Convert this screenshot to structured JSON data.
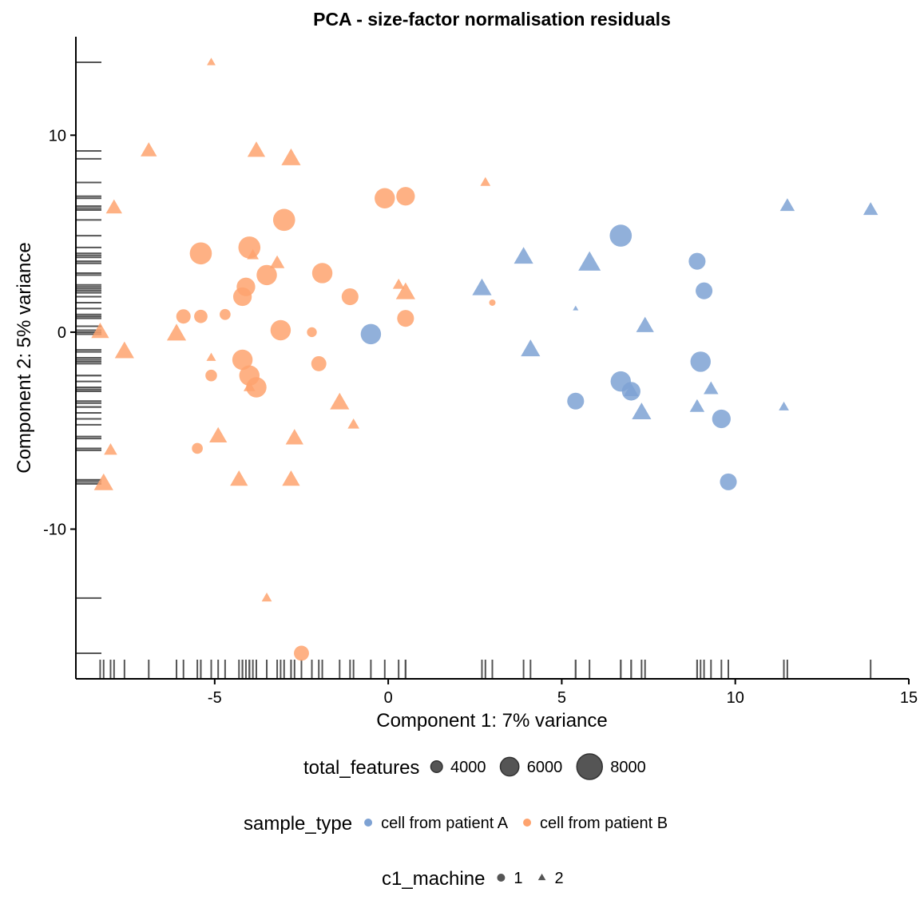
{
  "chart_data": {
    "type": "scatter",
    "title": "PCA - size-factor normalisation residuals",
    "xlabel": "Component 1: 7% variance",
    "ylabel": "Component 2: 5% variance",
    "xlim": [
      -9.0,
      15.0
    ],
    "ylim": [
      -17.6,
      15.0
    ],
    "xticks": [
      -5,
      0,
      5,
      10,
      15
    ],
    "xtick_labels": [
      "-5",
      "0",
      "5",
      "10",
      "15"
    ],
    "yticks": [
      -10,
      0,
      10
    ],
    "ytick_labels": [
      "-10",
      "0",
      "10"
    ],
    "rug": true,
    "grid": false,
    "colors": {
      "A": "#7ea2d3",
      "B": "#fea36e",
      "legend_dark": "#555555"
    },
    "legends": [
      {
        "title": "total_features",
        "type": "size",
        "items": [
          {
            "label": "4000",
            "size": 4000
          },
          {
            "label": "6000",
            "size": 6000
          },
          {
            "label": "8000",
            "size": 8000
          }
        ]
      },
      {
        "title": "sample_type",
        "type": "color",
        "items": [
          {
            "label": "cell from patient A",
            "group": "A"
          },
          {
            "label": "cell from patient B",
            "group": "B"
          }
        ]
      },
      {
        "title": "c1_machine",
        "type": "shape",
        "items": [
          {
            "label": "1",
            "shape": "circle"
          },
          {
            "label": "2",
            "shape": "triangle"
          }
        ]
      }
    ],
    "points": [
      {
        "x": -4.1,
        "y": 2.3,
        "g": "B",
        "m": 1,
        "s": 6000
      },
      {
        "x": -4.2,
        "y": 1.8,
        "g": "B",
        "m": 1,
        "s": 6000
      },
      {
        "x": -4.0,
        "y": 4.3,
        "g": "B",
        "m": 1,
        "s": 7000
      },
      {
        "x": -3.0,
        "y": 5.7,
        "g": "B",
        "m": 1,
        "s": 7000
      },
      {
        "x": -5.4,
        "y": 4.0,
        "g": "B",
        "m": 1,
        "s": 7000
      },
      {
        "x": -3.5,
        "y": 2.9,
        "g": "B",
        "m": 1,
        "s": 6500
      },
      {
        "x": -1.9,
        "y": 3.0,
        "g": "B",
        "m": 1,
        "s": 6500
      },
      {
        "x": -1.1,
        "y": 1.8,
        "g": "B",
        "m": 1,
        "s": 5500
      },
      {
        "x": -0.1,
        "y": 6.8,
        "g": "B",
        "m": 1,
        "s": 6500
      },
      {
        "x": 0.5,
        "y": 6.9,
        "g": "B",
        "m": 1,
        "s": 6000
      },
      {
        "x": 0.5,
        "y": 0.7,
        "g": "B",
        "m": 1,
        "s": 5500
      },
      {
        "x": -3.1,
        "y": 0.1,
        "g": "B",
        "m": 1,
        "s": 6500
      },
      {
        "x": -2.2,
        "y": 0.0,
        "g": "B",
        "m": 1,
        "s": 3500
      },
      {
        "x": -5.9,
        "y": 0.8,
        "g": "B",
        "m": 1,
        "s": 4800
      },
      {
        "x": -5.4,
        "y": 0.8,
        "g": "B",
        "m": 1,
        "s": 4500
      },
      {
        "x": -4.7,
        "y": 0.9,
        "g": "B",
        "m": 1,
        "s": 3800
      },
      {
        "x": -4.2,
        "y": -1.4,
        "g": "B",
        "m": 1,
        "s": 6500
      },
      {
        "x": -4.0,
        "y": -2.2,
        "g": "B",
        "m": 1,
        "s": 6500
      },
      {
        "x": -3.8,
        "y": -2.8,
        "g": "B",
        "m": 1,
        "s": 6500
      },
      {
        "x": -2.0,
        "y": -1.6,
        "g": "B",
        "m": 1,
        "s": 5000
      },
      {
        "x": -5.1,
        "y": -2.2,
        "g": "B",
        "m": 1,
        "s": 4000
      },
      {
        "x": -5.5,
        "y": -5.9,
        "g": "B",
        "m": 1,
        "s": 3800
      },
      {
        "x": -2.5,
        "y": -16.3,
        "g": "B",
        "m": 1,
        "s": 5000
      },
      {
        "x": 3.0,
        "y": 1.5,
        "g": "B",
        "m": 1,
        "s": 2500
      },
      {
        "x": -5.1,
        "y": 13.7,
        "g": "B",
        "m": 2,
        "s": 3500
      },
      {
        "x": -6.9,
        "y": 9.2,
        "g": "B",
        "m": 2,
        "s": 6000
      },
      {
        "x": -3.8,
        "y": 9.2,
        "g": "B",
        "m": 2,
        "s": 6500
      },
      {
        "x": -2.8,
        "y": 8.8,
        "g": "B",
        "m": 2,
        "s": 7000
      },
      {
        "x": -7.9,
        "y": 6.3,
        "g": "B",
        "m": 2,
        "s": 6000
      },
      {
        "x": 2.8,
        "y": 7.6,
        "g": "B",
        "m": 2,
        "s": 4000
      },
      {
        "x": -3.9,
        "y": 3.9,
        "g": "B",
        "m": 2,
        "s": 4500
      },
      {
        "x": -3.2,
        "y": 3.5,
        "g": "B",
        "m": 2,
        "s": 5500
      },
      {
        "x": 0.3,
        "y": 2.4,
        "g": "B",
        "m": 2,
        "s": 4500
      },
      {
        "x": 0.5,
        "y": 2.0,
        "g": "B",
        "m": 2,
        "s": 7000
      },
      {
        "x": -8.3,
        "y": 0.0,
        "g": "B",
        "m": 2,
        "s": 6500
      },
      {
        "x": -7.6,
        "y": -1.0,
        "g": "B",
        "m": 2,
        "s": 7000
      },
      {
        "x": -6.1,
        "y": -0.1,
        "g": "B",
        "m": 2,
        "s": 7000
      },
      {
        "x": -5.1,
        "y": -1.3,
        "g": "B",
        "m": 2,
        "s": 3800
      },
      {
        "x": -1.4,
        "y": -3.6,
        "g": "B",
        "m": 2,
        "s": 7000
      },
      {
        "x": -1.0,
        "y": -4.7,
        "g": "B",
        "m": 2,
        "s": 4500
      },
      {
        "x": -4.9,
        "y": -5.3,
        "g": "B",
        "m": 2,
        "s": 6500
      },
      {
        "x": -2.7,
        "y": -5.4,
        "g": "B",
        "m": 2,
        "s": 6500
      },
      {
        "x": -8.0,
        "y": -6.0,
        "g": "B",
        "m": 2,
        "s": 5000
      },
      {
        "x": -8.2,
        "y": -7.7,
        "g": "B",
        "m": 2,
        "s": 7000
      },
      {
        "x": -4.3,
        "y": -7.5,
        "g": "B",
        "m": 2,
        "s": 6500
      },
      {
        "x": -2.8,
        "y": -7.5,
        "g": "B",
        "m": 2,
        "s": 6500
      },
      {
        "x": -4.0,
        "y": -2.8,
        "g": "B",
        "m": 2,
        "s": 4500
      },
      {
        "x": -3.5,
        "y": -13.5,
        "g": "B",
        "m": 2,
        "s": 4000
      },
      {
        "x": -0.5,
        "y": -0.1,
        "g": "A",
        "m": 1,
        "s": 6500
      },
      {
        "x": 6.7,
        "y": 4.9,
        "g": "A",
        "m": 1,
        "s": 7000
      },
      {
        "x": 8.9,
        "y": 3.6,
        "g": "A",
        "m": 1,
        "s": 5500
      },
      {
        "x": 9.1,
        "y": 2.1,
        "g": "A",
        "m": 1,
        "s": 5500
      },
      {
        "x": 9.0,
        "y": -1.5,
        "g": "A",
        "m": 1,
        "s": 6500
      },
      {
        "x": 6.7,
        "y": -2.5,
        "g": "A",
        "m": 1,
        "s": 6500
      },
      {
        "x": 7.0,
        "y": -3.0,
        "g": "A",
        "m": 1,
        "s": 6000
      },
      {
        "x": 5.4,
        "y": -3.5,
        "g": "A",
        "m": 1,
        "s": 5500
      },
      {
        "x": 9.6,
        "y": -4.4,
        "g": "A",
        "m": 1,
        "s": 6000
      },
      {
        "x": 9.8,
        "y": -7.6,
        "g": "A",
        "m": 1,
        "s": 5500
      },
      {
        "x": 11.5,
        "y": 6.4,
        "g": "A",
        "m": 2,
        "s": 5500
      },
      {
        "x": 13.9,
        "y": 6.2,
        "g": "A",
        "m": 2,
        "s": 5500
      },
      {
        "x": 3.9,
        "y": 3.8,
        "g": "A",
        "m": 2,
        "s": 7000
      },
      {
        "x": 5.8,
        "y": 3.5,
        "g": "A",
        "m": 2,
        "s": 8000
      },
      {
        "x": 2.7,
        "y": 2.2,
        "g": "A",
        "m": 2,
        "s": 7000
      },
      {
        "x": 5.4,
        "y": 1.2,
        "g": "A",
        "m": 2,
        "s": 2500
      },
      {
        "x": 7.4,
        "y": 0.3,
        "g": "A",
        "m": 2,
        "s": 6500
      },
      {
        "x": 4.1,
        "y": -0.9,
        "g": "A",
        "m": 2,
        "s": 7000
      },
      {
        "x": 7.0,
        "y": -3.0,
        "g": "A",
        "m": 2,
        "s": 5500
      },
      {
        "x": 7.3,
        "y": -4.1,
        "g": "A",
        "m": 2,
        "s": 7000
      },
      {
        "x": 8.9,
        "y": -3.8,
        "g": "A",
        "m": 2,
        "s": 5500
      },
      {
        "x": 9.3,
        "y": -2.9,
        "g": "A",
        "m": 2,
        "s": 5500
      },
      {
        "x": 11.4,
        "y": -3.8,
        "g": "A",
        "m": 2,
        "s": 4000
      }
    ]
  }
}
